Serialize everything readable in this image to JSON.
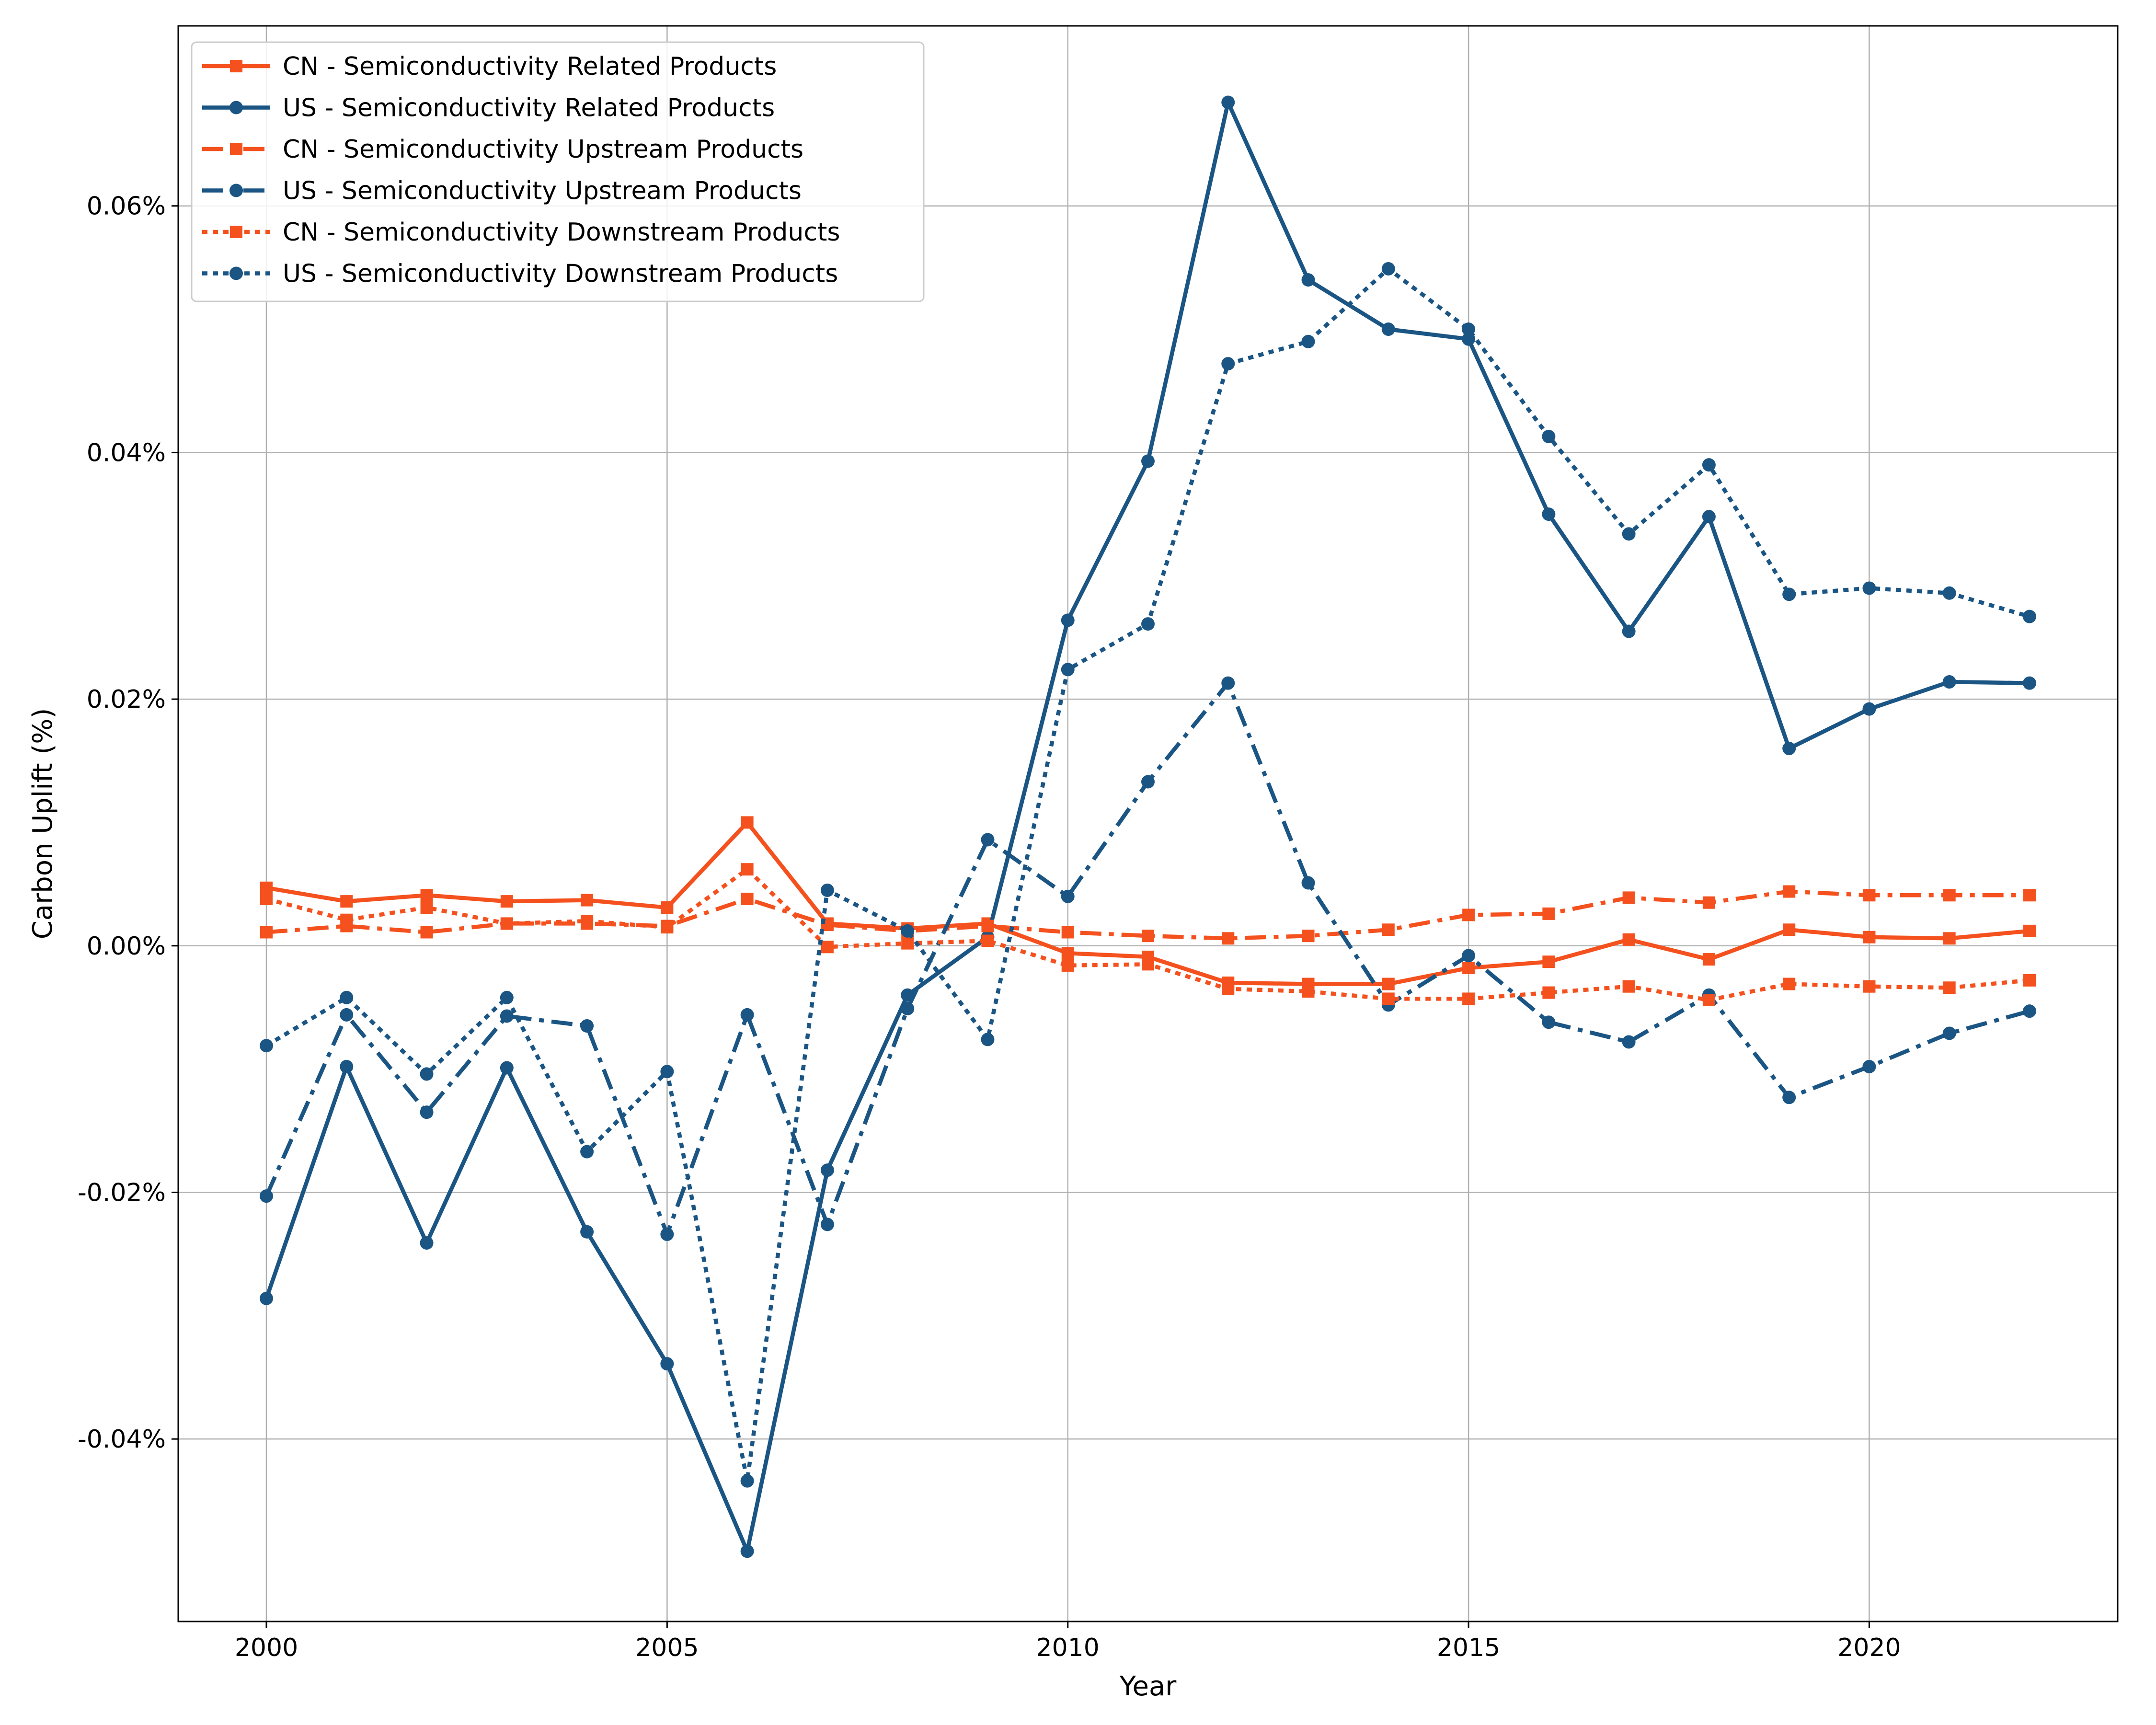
{
  "chart_data": {
    "type": "line",
    "xlabel": "Year",
    "ylabel": "Carbon Uplift (%)",
    "xlim": [
      1998.9,
      2023.1
    ],
    "ylim": [
      -0.0548,
      0.0746
    ],
    "x_ticks": [
      2000,
      2005,
      2010,
      2015,
      2020
    ],
    "x_tick_labels": [
      "2000",
      "2005",
      "2010",
      "2015",
      "2020"
    ],
    "y_ticks": [
      -0.04,
      -0.02,
      0.0,
      0.02,
      0.04,
      0.06
    ],
    "y_tick_labels": [
      "-0.04%",
      "-0.02%",
      "0.00%",
      "0.02%",
      "0.04%",
      "0.06%"
    ],
    "grid": true,
    "legend_position": "top-left",
    "colors": {
      "CN": "#f4511e",
      "US": "#1a5584"
    },
    "x": [
      2000,
      2001,
      2002,
      2003,
      2004,
      2005,
      2006,
      2007,
      2008,
      2009,
      2010,
      2011,
      2012,
      2013,
      2014,
      2015,
      2016,
      2017,
      2018,
      2019,
      2020,
      2021,
      2022
    ],
    "series": [
      {
        "name": "CN - Semiconductivity Related Products",
        "color": "#f4511e",
        "marker": "square",
        "linestyle": "solid",
        "values": [
          0.0047,
          0.0036,
          0.0041,
          0.0036,
          0.0037,
          0.0031,
          0.01,
          0.0018,
          0.0014,
          0.0018,
          -0.0006,
          -0.0009,
          -0.003,
          -0.0031,
          -0.0031,
          -0.0018,
          -0.0013,
          0.0005,
          -0.0011,
          0.0013,
          0.0007,
          0.0006,
          0.0012
        ]
      },
      {
        "name": "US - Semiconductivity Related Products",
        "color": "#1a5584",
        "marker": "circle",
        "linestyle": "solid",
        "values": [
          -0.0286,
          -0.0098,
          -0.0241,
          -0.0099,
          -0.0232,
          -0.0339,
          -0.0491,
          -0.0182,
          -0.004,
          0.0007,
          0.0264,
          0.0393,
          0.0684,
          0.054,
          0.05,
          0.0492,
          0.035,
          0.0255,
          0.0348,
          0.016,
          0.0192,
          0.0214,
          0.0213
        ]
      },
      {
        "name": "CN - Semiconductivity Upstream Products",
        "color": "#f4511e",
        "marker": "square",
        "linestyle": "dashdot",
        "values": [
          0.0011,
          0.0016,
          0.0011,
          0.0018,
          0.0018,
          0.0016,
          0.0038,
          0.0017,
          0.0012,
          0.0016,
          0.0011,
          0.0008,
          0.0006,
          0.0008,
          0.0013,
          0.0025,
          0.0026,
          0.0039,
          0.0035,
          0.0044,
          0.0041,
          0.0041,
          0.0041
        ]
      },
      {
        "name": "US - Semiconductivity Upstream Products",
        "color": "#1a5584",
        "marker": "circle",
        "linestyle": "dashdot",
        "values": [
          -0.0203,
          -0.0056,
          -0.0135,
          -0.0057,
          -0.0065,
          -0.0234,
          -0.0056,
          -0.0226,
          -0.0051,
          0.0086,
          0.004,
          0.0133,
          0.0213,
          0.0051,
          -0.0048,
          -0.0008,
          -0.0062,
          -0.0078,
          -0.004,
          -0.0123,
          -0.0098,
          -0.0071,
          -0.0053
        ]
      },
      {
        "name": "CN - Semiconductivity Downstream Products",
        "color": "#f4511e",
        "marker": "square",
        "linestyle": "dotted",
        "values": [
          0.0038,
          0.0021,
          0.0031,
          0.0018,
          0.002,
          0.0015,
          0.0062,
          -0.0001,
          0.0002,
          0.0004,
          -0.0016,
          -0.0015,
          -0.0035,
          -0.0037,
          -0.0043,
          -0.0043,
          -0.0038,
          -0.0033,
          -0.0044,
          -0.0031,
          -0.0033,
          -0.0034,
          -0.0028
        ]
      },
      {
        "name": "US - Semiconductivity Downstream Products",
        "color": "#1a5584",
        "marker": "circle",
        "linestyle": "dotted",
        "values": [
          -0.0081,
          -0.0042,
          -0.0104,
          -0.0042,
          -0.0167,
          -0.0102,
          -0.0434,
          0.0045,
          0.0012,
          -0.0076,
          0.0224,
          0.0261,
          0.0472,
          0.049,
          0.0549,
          0.05,
          0.0413,
          0.0334,
          0.039,
          0.0285,
          0.029,
          0.0286,
          0.0267
        ]
      }
    ]
  }
}
